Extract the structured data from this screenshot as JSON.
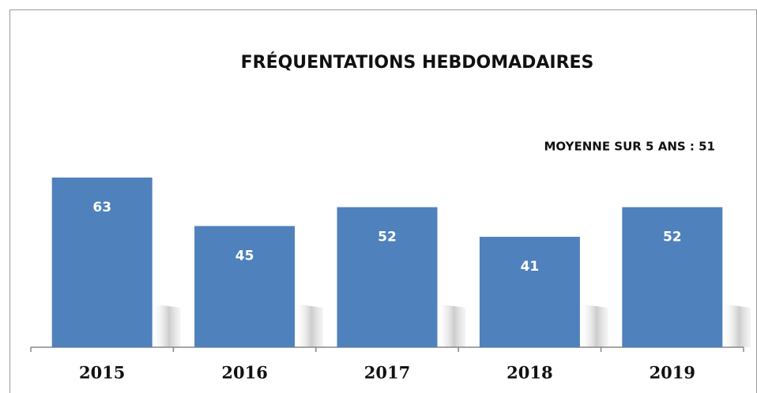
{
  "chart_data": {
    "type": "bar",
    "title": "FRÉQUENTATIONS HEBDOMADAIRES",
    "annotation": "MOYENNE SUR 5 ANS : 51",
    "categories": [
      "2015",
      "2016",
      "2017",
      "2018",
      "2019"
    ],
    "values": [
      63,
      45,
      52,
      41,
      52
    ],
    "color": "#4f81bd",
    "ylim": [
      0,
      100
    ]
  }
}
